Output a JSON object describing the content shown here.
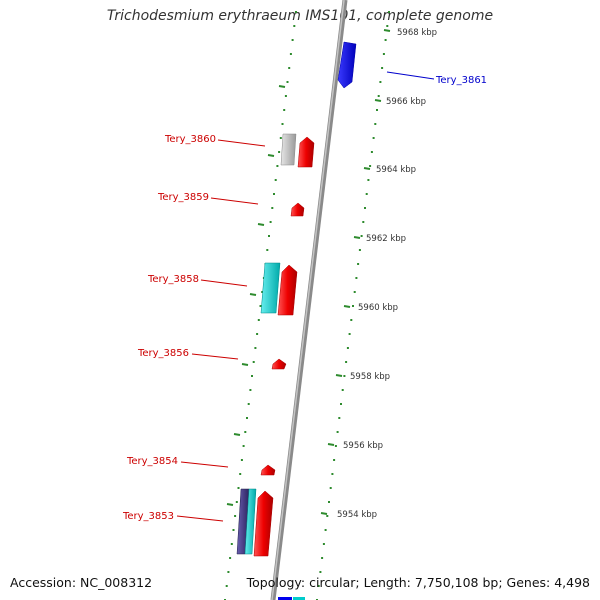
{
  "title": "Trichodesmium erythraeum IMS101, complete genome",
  "footer": {
    "accession": "Accession: NC_008312",
    "summary": "Topology: circular; Length: 7,750,108 bp; Genes: 4,498"
  },
  "scale_labels": [
    "5968 kbp",
    "5966 kbp",
    "5964 kbp",
    "5962 kbp",
    "5960 kbp",
    "5958 kbp",
    "5956 kbp",
    "5954 kbp"
  ],
  "gene_labels": [
    {
      "name": "Tery_3861",
      "strand": "reverse"
    },
    {
      "name": "Tery_3860",
      "strand": "forward"
    },
    {
      "name": "Tery_3859",
      "strand": "forward"
    },
    {
      "name": "Tery_3858",
      "strand": "forward"
    },
    {
      "name": "Tery_3856",
      "strand": "forward"
    },
    {
      "name": "Tery_3854",
      "strand": "forward"
    },
    {
      "name": "Tery_3853",
      "strand": "forward"
    }
  ],
  "colors": {
    "forward_label": "#cc0000",
    "reverse_label": "#0000cc",
    "backbone": "#888888",
    "dots": "#2e8b2e",
    "red_gene": "#ee0000",
    "blue_gene": "#0000ee",
    "cyan_gene": "#00cccc",
    "gray_gene": "#bbbbbb",
    "navy_gene": "#4a3f8c"
  }
}
